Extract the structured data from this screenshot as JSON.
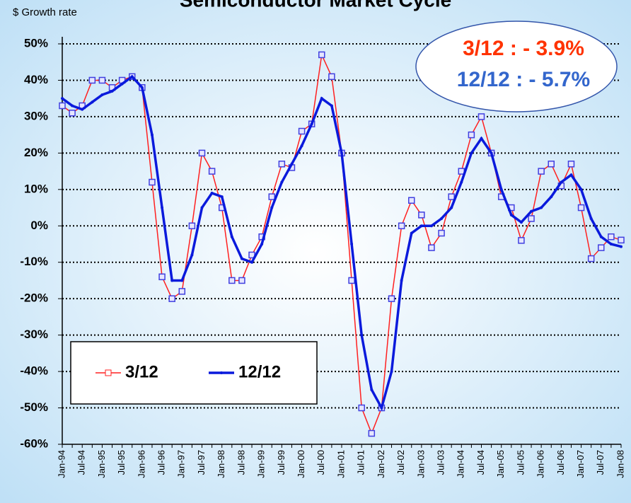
{
  "chart_data": {
    "type": "line",
    "title": "Semiconductor Market Cycle",
    "y_label": "$ Growth rate",
    "annotations": [
      {
        "text": "3/12 : - 3.9%",
        "color": "#ff3300"
      },
      {
        "text": "12/12 : - 5.7%",
        "color": "#3366cc"
      }
    ],
    "categories": [
      "Jan-94",
      null,
      "Jul-94",
      null,
      "Jan-95",
      null,
      "Jul-95",
      null,
      "Jan-96",
      null,
      "Jul-96",
      null,
      "Jan-97",
      null,
      "Jul-97",
      null,
      "Jan-98",
      null,
      "Jul-98",
      null,
      "Jan-99",
      null,
      "Jul-99",
      null,
      "Jan-00",
      null,
      "Jul-00",
      null,
      "Jan-01",
      null,
      "Jul-01",
      null,
      "Jan-02",
      null,
      "Jul-02",
      null,
      "Jan-03",
      null,
      "Jul-03",
      null,
      "Jan-04",
      null,
      "Jul-04",
      null,
      "Jan-05",
      null,
      "Jul-05",
      null,
      "Jan-06",
      null,
      "Jul-06",
      null,
      "Jan-07",
      null,
      "Jul-07",
      null,
      "Jan-08"
    ],
    "series": [
      {
        "name": "3/12",
        "color": "#ff2020",
        "marker_color": "#4040e0",
        "values": [
          33,
          31,
          33,
          40,
          40,
          38,
          40,
          41,
          38,
          12,
          -14,
          -20,
          -18,
          0,
          20,
          15,
          5,
          -15,
          -15,
          -8,
          -3,
          8,
          17,
          16,
          26,
          28,
          47,
          41,
          20,
          -15,
          -50,
          -57,
          -50,
          -20,
          0,
          7,
          3,
          -6,
          -2,
          8,
          15,
          25,
          30,
          20,
          8,
          5,
          -4,
          2,
          15,
          17,
          11,
          17,
          5,
          -9,
          -6,
          -3,
          -3.9
        ]
      },
      {
        "name": "12/12",
        "color": "#0a1adc",
        "values": [
          35,
          33,
          32,
          34,
          36,
          37,
          39,
          41,
          38,
          25,
          5,
          -15,
          -15,
          -8,
          5,
          9,
          8,
          -3,
          -9,
          -10,
          -5,
          5,
          12,
          17,
          22,
          28,
          35,
          33,
          20,
          -5,
          -30,
          -45,
          -50,
          -40,
          -15,
          -2,
          0,
          0,
          2,
          5,
          12,
          20,
          24,
          20,
          10,
          3,
          1,
          4,
          5,
          8,
          12,
          14,
          10,
          2,
          -3,
          -5,
          -5.7
        ]
      }
    ],
    "ylim": [
      -60,
      50
    ],
    "yticks": [
      {
        "value": -60,
        "label": "-60%"
      },
      {
        "value": -50,
        "label": "-50%"
      },
      {
        "value": -40,
        "label": "-40%"
      },
      {
        "value": -30,
        "label": "-30%"
      },
      {
        "value": -20,
        "label": "-20%"
      },
      {
        "value": -10,
        "label": "-10%"
      },
      {
        "value": 0,
        "label": "0%"
      },
      {
        "value": 10,
        "label": "10%"
      },
      {
        "value": 20,
        "label": "20%"
      },
      {
        "value": 30,
        "label": "30%"
      },
      {
        "value": 40,
        "label": "40%"
      },
      {
        "value": 50,
        "label": "50%"
      }
    ],
    "grid": true
  }
}
